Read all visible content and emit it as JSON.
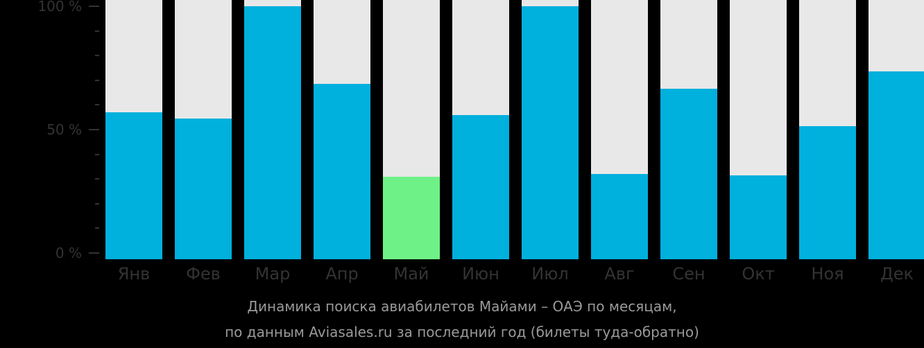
{
  "chart_data": {
    "type": "bar",
    "title": "Динамика поиска авиабилетов Майами – ОАЭ по месяцам,",
    "subtitle": "по данным Aviasales.ru за последний год (билеты туда-обратно)",
    "xlabel": "",
    "ylabel": "",
    "ylim": [
      0,
      100
    ],
    "yticks": [
      "0 %",
      "50 %",
      "100 %"
    ],
    "grid": false,
    "legend": null,
    "categories": [
      "Янв",
      "Фев",
      "Мар",
      "Апр",
      "Май",
      "Июн",
      "Июл",
      "Авг",
      "Сен",
      "Окт",
      "Ноя",
      "Дек"
    ],
    "values": [
      57,
      54.5,
      100,
      68.5,
      31,
      56,
      100,
      32,
      66.5,
      31.5,
      51.5,
      73.5
    ],
    "highlight_index": 4,
    "colors": {
      "bar": "#00b0dd",
      "highlight": "#6ef287",
      "track": "#e8e8e8",
      "background": "#000000",
      "axis_text": "#333333",
      "caption_text": "#9a9a9a"
    }
  },
  "caption": {
    "line1": "Динамика поиска авиабилетов Майами – ОАЭ по месяцам,",
    "line2": "по данным Aviasales.ru за последний год (билеты туда-обратно)"
  }
}
